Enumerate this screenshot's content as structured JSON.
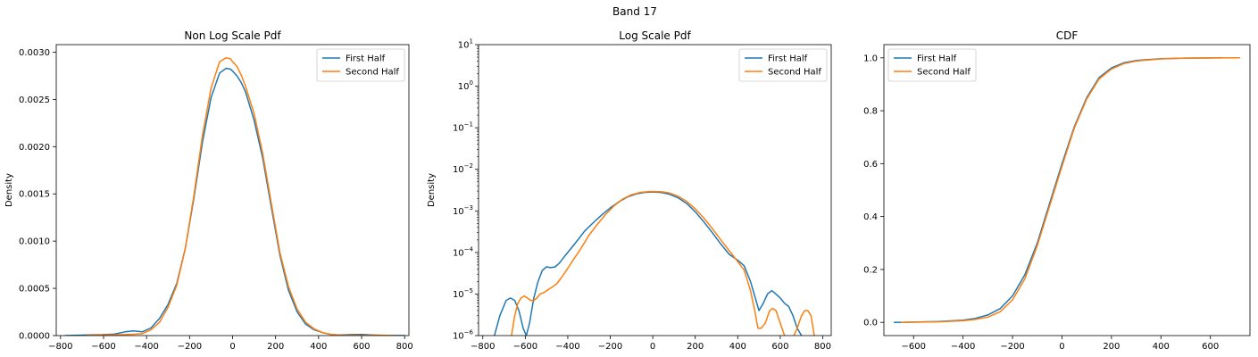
{
  "suptitle": "Band 17",
  "colors": {
    "first": "#1f77b4",
    "second": "#ff7f0e"
  },
  "chart_data": [
    {
      "type": "line",
      "title": "Non Log Scale Pdf",
      "xlabel": "",
      "ylabel": "Density",
      "xlim": [
        -820,
        820
      ],
      "ylim": [
        0,
        0.00308
      ],
      "xticks": [
        -800,
        -600,
        -400,
        -200,
        0,
        200,
        400,
        600,
        800
      ],
      "xtick_labels": [
        "−800",
        "−600",
        "−400",
        "−200",
        "0",
        "200",
        "400",
        "600",
        "800"
      ],
      "yticks": [
        0,
        0.0005,
        0.001,
        0.0015,
        0.002,
        0.0025,
        0.003
      ],
      "ytick_labels": [
        "0.0000",
        "0.0005",
        "0.0010",
        "0.0015",
        "0.0020",
        "0.0025",
        "0.0030"
      ],
      "legend": {
        "placement": "top-right",
        "entries": [
          "First Half",
          "Second Half"
        ]
      },
      "series": [
        {
          "name": "First Half",
          "x": [
            -780,
            -700,
            -600,
            -550,
            -500,
            -460,
            -420,
            -380,
            -340,
            -300,
            -260,
            -220,
            -180,
            -140,
            -100,
            -60,
            -30,
            -10,
            0,
            20,
            40,
            60,
            100,
            140,
            180,
            220,
            260,
            300,
            340,
            380,
            420,
            460,
            500,
            550,
            600,
            650,
            700,
            800
          ],
          "y": [
            0,
            5e-06,
            1e-05,
            1.5e-05,
            4e-05,
            5e-05,
            4e-05,
            8e-05,
            0.00018,
            0.00033,
            0.00055,
            0.00092,
            0.00145,
            0.00205,
            0.00252,
            0.00278,
            0.00283,
            0.00282,
            0.0028,
            0.00275,
            0.00268,
            0.00258,
            0.00228,
            0.00188,
            0.00136,
            0.00085,
            0.00048,
            0.00025,
            0.00012,
            6e-05,
            3e-05,
            1e-05,
            6e-06,
            1e-05,
            1.1e-05,
            6e-06,
            2e-06,
            0
          ]
        },
        {
          "name": "Second Half",
          "x": [
            -680,
            -620,
            -560,
            -500,
            -460,
            -420,
            -380,
            -340,
            -300,
            -260,
            -220,
            -180,
            -140,
            -100,
            -60,
            -30,
            -10,
            0,
            20,
            40,
            60,
            100,
            140,
            180,
            220,
            260,
            300,
            340,
            380,
            420,
            460,
            500,
            540,
            580,
            620,
            680,
            720,
            760
          ],
          "y": [
            0,
            8e-06,
            7e-06,
            1e-05,
            1.4e-05,
            2e-05,
            6e-05,
            0.00014,
            0.0003,
            0.00053,
            0.00092,
            0.00148,
            0.00212,
            0.00262,
            0.0029,
            0.00294,
            0.00293,
            0.0029,
            0.00285,
            0.00276,
            0.00264,
            0.00235,
            0.00193,
            0.0014,
            0.00088,
            0.00052,
            0.00028,
            0.00014,
            7e-05,
            3e-05,
            1.2e-05,
            4e-06,
            4e-06,
            4e-06,
            2e-06,
            4e-06,
            3e-06,
            0
          ]
        }
      ]
    },
    {
      "type": "line",
      "title": "Log Scale Pdf",
      "xlabel": "",
      "ylabel": "Density",
      "yscale": "log",
      "xlim": [
        -820,
        840
      ],
      "ylim": [
        1e-06,
        10
      ],
      "xticks": [
        -800,
        -600,
        -400,
        -200,
        0,
        200,
        400,
        600,
        800
      ],
      "xtick_labels": [
        "−800",
        "−600",
        "−400",
        "−200",
        "0",
        "200",
        "400",
        "600",
        "800"
      ],
      "yticks": [
        1e-06,
        1e-05,
        0.0001,
        0.001,
        0.01,
        0.1,
        1,
        10
      ],
      "ytick_exponents": [
        "−6",
        "−5",
        "−4",
        "−3",
        "−2",
        "−1",
        "0",
        "1"
      ],
      "legend": {
        "placement": "top-right",
        "entries": [
          "First Half",
          "Second Half"
        ]
      },
      "series": [
        {
          "name": "First Half",
          "x": [
            -745,
            -720,
            -690,
            -670,
            -650,
            -630,
            -610,
            -595,
            -580,
            -560,
            -540,
            -520,
            -500,
            -480,
            -460,
            -440,
            -420,
            -400,
            -360,
            -320,
            -280,
            -240,
            -200,
            -160,
            -120,
            -80,
            -40,
            0,
            40,
            80,
            120,
            160,
            200,
            240,
            280,
            320,
            360,
            400,
            430,
            460,
            480,
            500,
            520,
            540,
            560,
            580,
            600,
            620,
            640,
            660,
            680,
            700
          ],
          "y": [
            1e-06,
            3e-06,
            7e-06,
            8e-06,
            7e-06,
            4e-06,
            1.5e-06,
            1e-06,
            2e-06,
            8e-06,
            2e-05,
            3.7e-05,
            4.5e-05,
            4.3e-05,
            4.5e-05,
            5.5e-05,
            7.5e-05,
            0.0001,
            0.00018,
            0.00033,
            0.00052,
            0.0008,
            0.00118,
            0.00165,
            0.00215,
            0.00255,
            0.00278,
            0.00285,
            0.00278,
            0.0025,
            0.00205,
            0.0015,
            0.00095,
            0.00055,
            0.0003,
            0.00016,
            9e-05,
            6.5e-05,
            4.8e-05,
            2e-05,
            9e-06,
            4e-06,
            6e-06,
            1e-05,
            1.2e-05,
            1e-05,
            8e-06,
            6e-06,
            5e-06,
            3e-06,
            1.5e-06,
            1e-06
          ]
        },
        {
          "name": "Second Half",
          "x": [
            -665,
            -650,
            -635,
            -620,
            -605,
            -590,
            -575,
            -560,
            -545,
            -530,
            -510,
            -490,
            -470,
            -450,
            -430,
            -410,
            -380,
            -340,
            -300,
            -260,
            -220,
            -180,
            -140,
            -100,
            -60,
            -20,
            0,
            40,
            80,
            120,
            160,
            200,
            240,
            280,
            320,
            360,
            400,
            430,
            460,
            480,
            495,
            510,
            530,
            550,
            565,
            580,
            600,
            620,
            640,
            660,
            680,
            700,
            715,
            730,
            745,
            760
          ],
          "y": [
            1e-06,
            3e-06,
            6e-06,
            8e-06,
            9e-06,
            8e-06,
            7e-06,
            7e-06,
            8e-06,
            1e-05,
            1.1e-05,
            1.3e-05,
            1.5e-05,
            1.8e-05,
            2.5e-05,
            3.5e-05,
            6e-05,
            0.00012,
            0.00026,
            0.00048,
            0.00085,
            0.00135,
            0.00195,
            0.00245,
            0.00278,
            0.00292,
            0.00294,
            0.0029,
            0.00268,
            0.00225,
            0.00168,
            0.00112,
            0.00068,
            0.00038,
            0.0002,
            0.00011,
            6e-05,
            3.8e-05,
            1.2e-05,
            4e-06,
            1.5e-06,
            1.5e-06,
            2e-06,
            4e-06,
            4.5e-06,
            4e-06,
            2e-06,
            1e-06,
            7e-07,
            9e-07,
            1.5e-06,
            3e-06,
            4e-06,
            4e-06,
            3e-06,
            1e-06
          ]
        }
      ]
    },
    {
      "type": "line",
      "title": "CDF",
      "xlabel": "",
      "ylabel": "",
      "xlim": [
        -720,
        760
      ],
      "ylim": [
        -0.05,
        1.05
      ],
      "xticks": [
        -600,
        -400,
        -200,
        0,
        200,
        400,
        600
      ],
      "xtick_labels": [
        "−600",
        "−400",
        "−200",
        "0",
        "200",
        "400",
        "600"
      ],
      "yticks": [
        0,
        0.2,
        0.4,
        0.6,
        0.8,
        1.0
      ],
      "ytick_labels": [
        "0.0",
        "0.2",
        "0.4",
        "0.6",
        "0.8",
        "1.0"
      ],
      "legend": {
        "placement": "top-left",
        "entries": [
          "First Half",
          "Second Half"
        ]
      },
      "series": [
        {
          "name": "First Half",
          "x": [
            -680,
            -600,
            -500,
            -400,
            -350,
            -300,
            -250,
            -200,
            -150,
            -100,
            -50,
            0,
            50,
            100,
            150,
            200,
            250,
            300,
            400,
            500,
            650
          ],
          "y": [
            0,
            0.001,
            0.003,
            0.008,
            0.015,
            0.028,
            0.052,
            0.1,
            0.18,
            0.3,
            0.45,
            0.6,
            0.74,
            0.85,
            0.925,
            0.962,
            0.981,
            0.99,
            0.997,
            0.999,
            1.0
          ]
        },
        {
          "name": "Second Half",
          "x": [
            -650,
            -600,
            -500,
            -400,
            -350,
            -300,
            -250,
            -200,
            -150,
            -100,
            -50,
            0,
            50,
            100,
            150,
            200,
            250,
            300,
            400,
            500,
            720
          ],
          "y": [
            0,
            0.0005,
            0.002,
            0.006,
            0.011,
            0.02,
            0.04,
            0.085,
            0.165,
            0.29,
            0.44,
            0.59,
            0.735,
            0.845,
            0.92,
            0.958,
            0.978,
            0.988,
            0.996,
            0.999,
            1.0
          ]
        }
      ]
    }
  ]
}
